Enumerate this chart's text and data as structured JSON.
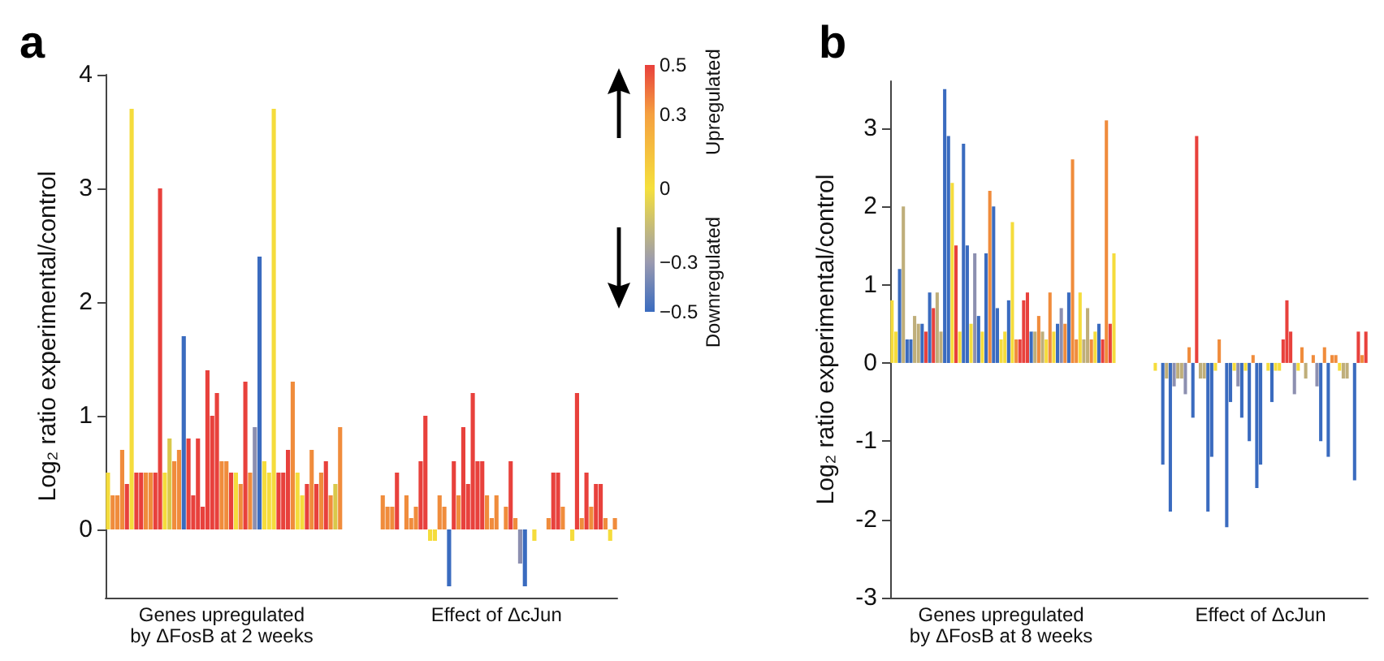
{
  "chart_data": [
    {
      "type": "bar",
      "title": "a",
      "ylabel": "Log₂ ratio experimental/control",
      "categories": [
        null,
        null,
        null,
        null,
        null,
        null,
        null,
        null,
        null,
        null,
        null,
        null,
        null,
        null,
        null,
        null,
        null,
        null,
        null,
        null,
        null,
        null,
        null,
        null,
        "Genes upregulated by ΔFosB at 2 weeks",
        null,
        null,
        null,
        null,
        null,
        null,
        null,
        null,
        null,
        null,
        null,
        null,
        null,
        null,
        null,
        null,
        null,
        null,
        null,
        null,
        null,
        null,
        null,
        null,
        null,
        null,
        null,
        null,
        null,
        null,
        null,
        null,
        null,
        null,
        null,
        null,
        null,
        null,
        null,
        null,
        null,
        null,
        null,
        null,
        null,
        null,
        null,
        null,
        null,
        null,
        null,
        null,
        null,
        null,
        null,
        null,
        null,
        "Effect of ΔcJun",
        null,
        null,
        null,
        null,
        null,
        null,
        null,
        null,
        null,
        null,
        null,
        null,
        null,
        null,
        null,
        null,
        null,
        null,
        null,
        null,
        null,
        null,
        null,
        null,
        null
      ],
      "values": [
        0.5,
        0.3,
        0.3,
        0.7,
        0.4,
        3.7,
        0.5,
        0.5,
        0.5,
        0.5,
        0.5,
        3.0,
        0.5,
        0.8,
        0.6,
        0.7,
        1.7,
        0.8,
        0.3,
        0.8,
        0.2,
        1.4,
        1.0,
        1.2,
        0.6,
        0.6,
        0.5,
        0.5,
        0.4,
        1.3,
        0.5,
        0.9,
        2.4,
        0.6,
        0.5,
        3.7,
        0.5,
        0.5,
        0.7,
        1.3,
        0.5,
        0.3,
        0.4,
        0.7,
        0.4,
        0.5,
        0.6,
        0.3,
        0.4,
        0.9,
        null,
        null,
        null,
        null,
        null,
        null,
        null,
        null,
        0.3,
        0.2,
        0.2,
        0.5,
        null,
        0.3,
        0.1,
        0.2,
        0.6,
        1.0,
        -0.1,
        -0.1,
        0.3,
        0.2,
        -0.5,
        0.6,
        0.3,
        0.9,
        0.4,
        1.2,
        0.6,
        0.6,
        0.3,
        0.1,
        0.3,
        null,
        0.2,
        0.6,
        0.1,
        -0.3,
        -0.5,
        null,
        -0.1,
        null,
        null,
        0.1,
        0.5,
        0.5,
        0.2,
        null,
        -0.1,
        1.2,
        0.1,
        0.5,
        0.2,
        0.4,
        0.4,
        0.1,
        -0.1,
        0.1
      ],
      "colors": [
        "#f5dc3c",
        "#f08c3c",
        "#f08c3c",
        "#f08c3c",
        "#e8413c",
        "#f5dc3c",
        "#e8413c",
        "#e8413c",
        "#f08c3c",
        "#f08c3c",
        "#e8413c",
        "#e8413c",
        "#f5dc3c",
        "#d9c84a",
        "#f08c3c",
        "#f08c3c",
        "#3a6bbf",
        "#e8413c",
        "#e8413c",
        "#e8413c",
        "#e8413c",
        "#e8413c",
        "#e8413c",
        "#e8413c",
        "#f08c3c",
        "#f08c3c",
        "#e8413c",
        "#f5dc3c",
        "#f08c3c",
        "#e8413c",
        "#f08c3c",
        "#8c8fb0",
        "#3a6bbf",
        "#f5dc3c",
        "#f5dc3c",
        "#f5dc3c",
        "#e8413c",
        "#e8413c",
        "#e8413c",
        "#f08c3c",
        "#f5dc3c",
        "#f5dc3c",
        "#e8413c",
        "#f08c3c",
        "#e8413c",
        "#f08c3c",
        "#e8413c",
        "#f08c3c",
        "#d9c84a",
        "#f08c3c",
        null,
        null,
        null,
        null,
        null,
        null,
        null,
        null,
        "#f08c3c",
        "#f08c3c",
        "#f08c3c",
        "#e8413c",
        null,
        "#f08c3c",
        "#f08c3c",
        "#f08c3c",
        "#e8413c",
        "#e8413c",
        "#f5dc3c",
        "#f5dc3c",
        "#f08c3c",
        "#f08c3c",
        "#3a6bbf",
        "#e8413c",
        "#f08c3c",
        "#e8413c",
        "#e8413c",
        "#e8413c",
        "#e8413c",
        "#e8413c",
        "#f08c3c",
        "#f08c3c",
        "#f08c3c",
        null,
        "#f08c3c",
        "#e8413c",
        "#f08c3c",
        "#8c8fb0",
        "#3a6bbf",
        null,
        "#f5dc3c",
        null,
        null,
        "#f08c3c",
        "#e8413c",
        "#e8413c",
        "#f08c3c",
        null,
        "#f5dc3c",
        "#e8413c",
        "#f08c3c",
        "#e8413c",
        "#f08c3c",
        "#e8413c",
        "#e8413c",
        "#f08c3c",
        "#f5dc3c",
        "#f08c3c"
      ],
      "ylim": [
        -0.6,
        4
      ],
      "yticks": [
        0,
        1,
        2,
        3,
        4
      ],
      "clim": [
        -0.5,
        0.5
      ],
      "cticks": [
        {
          "value": 0.5,
          "label": "0.5"
        },
        {
          "value": 0.3,
          "label": "0.3"
        },
        {
          "value": 0,
          "label": "0"
        },
        {
          "value": -0.3,
          "label": "−0.3"
        },
        {
          "value": -0.5,
          "label": "−0.5"
        }
      ],
      "annotations": [
        "Upregulated",
        "Downregulated"
      ]
    },
    {
      "type": "bar",
      "title": "b",
      "ylabel": "Log₂ ratio experimental/control",
      "categories": [
        null,
        null,
        null,
        null,
        null,
        null,
        null,
        null,
        null,
        null,
        null,
        null,
        null,
        null,
        null,
        null,
        null,
        null,
        null,
        null,
        null,
        null,
        null,
        null,
        null,
        null,
        null,
        null,
        null,
        "Genes upregulated by ΔFosB at 8 weeks",
        null,
        null,
        null,
        null,
        null,
        null,
        null,
        null,
        null,
        null,
        null,
        null,
        null,
        null,
        null,
        null,
        null,
        null,
        null,
        null,
        null,
        null,
        null,
        null,
        null,
        null,
        null,
        null,
        null,
        null,
        null,
        null,
        null,
        null,
        null,
        null,
        null,
        null,
        null,
        null,
        null,
        null,
        null,
        null,
        null,
        null,
        null,
        null,
        null,
        null,
        null,
        null,
        null,
        null,
        null,
        null,
        null,
        null,
        null,
        null,
        null,
        null,
        null,
        null,
        null,
        null,
        null,
        null,
        "Effect of ΔcJun",
        null,
        null,
        null,
        null,
        null,
        null,
        null,
        null,
        null,
        null,
        null,
        null,
        null,
        null,
        null,
        null,
        null,
        null,
        null,
        null,
        null,
        null,
        null,
        null,
        null,
        null,
        null,
        null
      ],
      "values": [
        0.8,
        0.4,
        1.2,
        2.0,
        0.3,
        0.3,
        0.6,
        0.5,
        0.5,
        0.4,
        0.9,
        0.7,
        0.9,
        0.4,
        3.5,
        2.9,
        2.3,
        1.5,
        0.4,
        2.8,
        1.5,
        0.5,
        1.4,
        0.6,
        0.4,
        1.4,
        2.2,
        2.0,
        0.7,
        0.3,
        0.4,
        0.8,
        1.8,
        0.3,
        0.3,
        0.8,
        0.9,
        0.4,
        0.4,
        0.6,
        0.4,
        0.3,
        0.9,
        0.4,
        0.5,
        0.7,
        0.5,
        0.9,
        2.6,
        0.3,
        0.9,
        0.3,
        0.7,
        0.3,
        0.4,
        0.5,
        0.3,
        3.1,
        0.5,
        1.4,
        null,
        null,
        null,
        null,
        null,
        null,
        null,
        null,
        null,
        null,
        -0.1,
        null,
        -1.3,
        -0.2,
        -1.9,
        -0.3,
        -0.2,
        -0.2,
        -0.4,
        0.2,
        -0.7,
        2.9,
        -0.2,
        -0.2,
        -1.9,
        -1.2,
        -0.1,
        0.3,
        null,
        -2.1,
        -0.5,
        -0.1,
        -0.3,
        -0.7,
        -0.1,
        -1.0,
        0.1,
        -1.6,
        -1.3,
        null,
        -0.1,
        -0.5,
        -0.1,
        -0.1,
        0.3,
        0.8,
        0.4,
        -0.4,
        -0.1,
        0.2,
        -0.2,
        null,
        0.1,
        -0.3,
        -1.0,
        0.2,
        -1.2,
        0.1,
        0.1,
        -0.1,
        -0.2,
        -0.2,
        null,
        -1.5,
        0.4,
        0.1,
        0.4
      ],
      "colors": [
        "#f5dc3c",
        "#f5dc3c",
        "#3a6bbf",
        "#bfae7a",
        "#3a6bbf",
        "#3a6bbf",
        "#bfae7a",
        "#bfae7a",
        "#3a6bbf",
        "#e8413c",
        "#3a6bbf",
        "#e8413c",
        "#bfae7a",
        "#bfae7a",
        "#3a6bbf",
        "#3a6bbf",
        "#f5dc3c",
        "#e8413c",
        "#f5dc3c",
        "#3a6bbf",
        "#3a6bbf",
        "#f5dc3c",
        "#8c8fb0",
        "#3a6bbf",
        "#f5dc3c",
        "#3a6bbf",
        "#f08c3c",
        "#3a6bbf",
        "#3a6bbf",
        "#f5dc3c",
        "#f5dc3c",
        "#3a6bbf",
        "#f5dc3c",
        "#f08c3c",
        "#e8413c",
        "#e8413c",
        "#e8413c",
        "#3a6bbf",
        "#bfae7a",
        "#f08c3c",
        "#bfae7a",
        "#f5dc3c",
        "#f08c3c",
        "#f5dc3c",
        "#3a6bbf",
        "#8c8fb0",
        "#f08c3c",
        "#3a6bbf",
        "#f08c3c",
        "#f08c3c",
        "#f5dc3c",
        "#bfae7a",
        "#bfae7a",
        "#f08c3c",
        "#f5dc3c",
        "#3a6bbf",
        "#e8413c",
        "#f08c3c",
        "#e8413c",
        "#f5dc3c",
        null,
        null,
        null,
        null,
        null,
        null,
        null,
        null,
        null,
        null,
        "#f5dc3c",
        null,
        "#3a6bbf",
        "#bfae7a",
        "#3a6bbf",
        "#8c8fb0",
        "#bfae7a",
        "#bfae7a",
        "#8c8fb0",
        "#f08c3c",
        "#3a6bbf",
        "#e8413c",
        "#bfae7a",
        "#bfae7a",
        "#3a6bbf",
        "#3a6bbf",
        "#f5dc3c",
        "#f08c3c",
        null,
        "#3a6bbf",
        "#3a6bbf",
        "#f5dc3c",
        "#8c8fb0",
        "#3a6bbf",
        "#f5dc3c",
        "#3a6bbf",
        "#f08c3c",
        "#3a6bbf",
        "#3a6bbf",
        null,
        "#f5dc3c",
        "#3a6bbf",
        "#f5dc3c",
        "#f5dc3c",
        "#e8413c",
        "#e8413c",
        "#e8413c",
        "#8c8fb0",
        "#f5dc3c",
        "#f08c3c",
        "#bfae7a",
        null,
        "#f08c3c",
        "#8c8fb0",
        "#3a6bbf",
        "#f08c3c",
        "#3a6bbf",
        "#f08c3c",
        "#f08c3c",
        "#f5dc3c",
        "#bfae7a",
        "#bfae7a",
        null,
        "#3a6bbf",
        "#e8413c",
        "#f08c3c",
        "#e8413c"
      ],
      "ylim": [
        -3,
        3.6
      ],
      "yticks": [
        -3,
        -2,
        -1,
        0,
        1,
        2,
        3
      ]
    }
  ]
}
